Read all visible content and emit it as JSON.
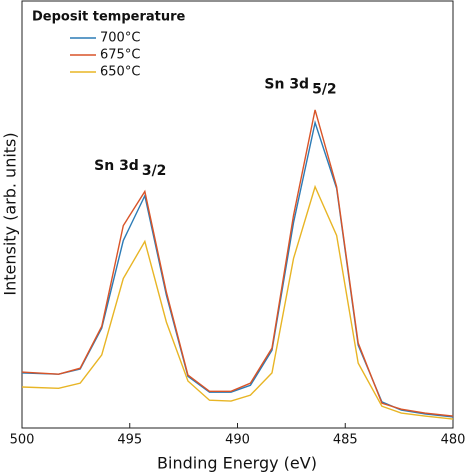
{
  "chart_data": {
    "type": "line",
    "xlabel": "Binding Energy (eV)",
    "ylabel": "Intensity (arb. units)",
    "legend_title": "Deposit temperature",
    "legend_position": "upper-left",
    "x": [
      500,
      498.3,
      497.3,
      496.3,
      495.3,
      494.3,
      493.3,
      492.3,
      491.3,
      490.3,
      489.4,
      488.4,
      487.4,
      486.4,
      485.4,
      484.4,
      483.3,
      482.4,
      481.3,
      480
    ],
    "series": [
      {
        "name": "700°C",
        "color": "#2c7bb6",
        "values": [
          12.9,
          12.6,
          13.8,
          23.4,
          43.9,
          54.4,
          31.1,
          12.1,
          8.4,
          8.4,
          10.0,
          18.2,
          48.1,
          71.5,
          56.1,
          19.4,
          6.1,
          4.2,
          3.3,
          2.6
        ]
      },
      {
        "name": "675°C",
        "color": "#d95428",
        "values": [
          13.1,
          12.6,
          14.0,
          23.8,
          47.4,
          55.4,
          31.8,
          12.4,
          8.6,
          8.6,
          10.5,
          18.7,
          49.8,
          74.5,
          56.5,
          19.9,
          5.8,
          4.4,
          3.5,
          2.8
        ]
      },
      {
        "name": "650°C",
        "color": "#e8b525",
        "values": [
          9.6,
          9.3,
          10.5,
          17.1,
          35.0,
          43.7,
          24.8,
          11.0,
          6.5,
          6.3,
          7.7,
          12.9,
          39.7,
          56.5,
          45.1,
          15.2,
          5.1,
          3.5,
          2.8,
          2.1
        ]
      }
    ],
    "annotations": [
      {
        "text": "Sn 3d",
        "sub": "3/2",
        "x": 494.3,
        "y": 61.4
      },
      {
        "text": "Sn 3d",
        "sub": "5/2",
        "x": 486.4,
        "y": 80.4
      }
    ],
    "xlim": [
      500,
      480
    ],
    "xticks": [
      500,
      495,
      490,
      485,
      480
    ],
    "ylim": [
      0,
      100
    ]
  }
}
